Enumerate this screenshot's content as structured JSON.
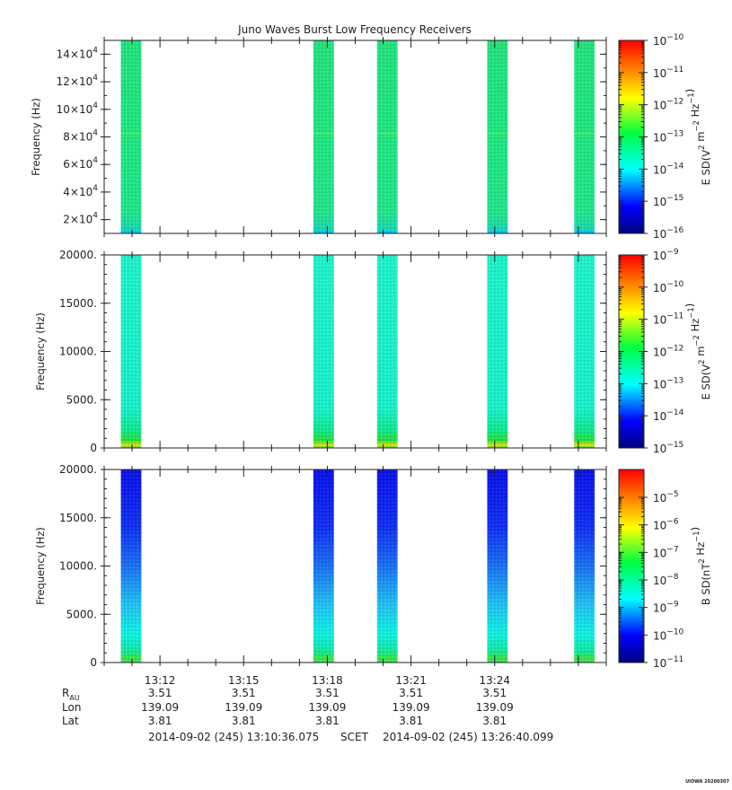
{
  "title": "Juno Waves Burst Low Frequency Receivers",
  "footer": {
    "start": "2014-09-02 (245) 13:10:36.075",
    "mid": "SCET",
    "end": "2014-09-02 (245) 13:26:40.099",
    "tag": "UIOWA 20200307"
  },
  "ephemeris": {
    "rows": [
      {
        "label": "R",
        "sub": "AU",
        "values": [
          "3.51",
          "3.51",
          "3.51",
          "3.51",
          "3.51"
        ]
      },
      {
        "label": "Lon",
        "sub": "",
        "values": [
          "139.09",
          "139.09",
          "139.09",
          "139.09",
          "139.09"
        ]
      },
      {
        "label": "Lat",
        "sub": "",
        "values": [
          "3.81",
          "3.81",
          "3.81",
          "3.81",
          "3.81"
        ]
      }
    ]
  },
  "chart_data": [
    {
      "type": "heatmap",
      "ylabel": "Frequency (Hz)",
      "colorbar_label": "E SD(V^2 m^-2 Hz^-1)",
      "colorbar_exponents": [
        -10,
        -11,
        -12,
        -13,
        -14,
        -15,
        -16
      ],
      "ylim": [
        10000,
        150000
      ],
      "yticks": [
        {
          "v": 20000,
          "m": "2",
          "e": "4"
        },
        {
          "v": 40000,
          "m": "4",
          "e": "4"
        },
        {
          "v": 60000,
          "m": "6",
          "e": "4"
        },
        {
          "v": 80000,
          "m": "8",
          "e": "4"
        },
        {
          "v": 100000,
          "m": "10",
          "e": "4"
        },
        {
          "v": 120000,
          "m": "12",
          "e": "4"
        },
        {
          "v": 140000,
          "m": "14",
          "e": "4"
        }
      ],
      "burst_intervals": [
        [
          "13:10:36",
          "13:11:20"
        ],
        [
          "13:17:30",
          "13:18:14"
        ],
        [
          "13:19:47",
          "13:20:31"
        ],
        [
          "13:23:44",
          "13:24:28"
        ],
        [
          "13:26:51",
          "13:27:35"
        ]
      ],
      "spectral_level": "1e-13 to 1e-14 (flat, green)"
    },
    {
      "type": "heatmap",
      "ylabel": "Frequency (Hz)",
      "colorbar_label": "E SD(V^2 m^-2 Hz^-1)",
      "colorbar_exponents": [
        -9,
        -10,
        -11,
        -12,
        -13,
        -14,
        -15
      ],
      "ylim": [
        0,
        20000
      ],
      "yticks": [
        {
          "v": 0,
          "t": "0"
        },
        {
          "v": 5000,
          "t": "5000."
        },
        {
          "v": 10000,
          "t": "10000."
        },
        {
          "v": 15000,
          "t": "15000."
        },
        {
          "v": 20000,
          "t": "20000."
        }
      ],
      "burst_intervals": [
        [
          "13:10:36",
          "13:11:20"
        ],
        [
          "13:17:30",
          "13:18:14"
        ],
        [
          "13:19:47",
          "13:20:31"
        ],
        [
          "13:23:44",
          "13:24:28"
        ],
        [
          "13:26:51",
          "13:27:35"
        ]
      ],
      "spectral_level": "~1e-13 (cyan), enhanced below 1 kHz"
    },
    {
      "type": "heatmap",
      "ylabel": "Frequency (Hz)",
      "colorbar_label": "B SD(nT^2 Hz^-1)",
      "colorbar_exponents": [
        -5,
        -6,
        -7,
        -8,
        -9,
        -10,
        -11
      ],
      "ylim": [
        0,
        20000
      ],
      "yticks": [
        {
          "v": 0,
          "t": "0"
        },
        {
          "v": 5000,
          "t": "5000."
        },
        {
          "v": 10000,
          "t": "10000."
        },
        {
          "v": 15000,
          "t": "15000."
        },
        {
          "v": 20000,
          "t": "20000."
        }
      ],
      "burst_intervals": [
        [
          "13:10:36",
          "13:11:20"
        ],
        [
          "13:17:30",
          "13:18:14"
        ],
        [
          "13:19:47",
          "13:20:31"
        ],
        [
          "13:23:44",
          "13:24:28"
        ],
        [
          "13:26:51",
          "13:27:35"
        ]
      ],
      "spectral_level": "1e-9 at low freq falling to 1e-10 at 20 kHz"
    }
  ],
  "x_axis": {
    "tick_labels": [
      "13:12",
      "13:15",
      "13:18",
      "13:21",
      "13:24"
    ],
    "xlim": [
      "13:10:00",
      "13:28:00"
    ]
  },
  "colors": {
    "scale": [
      "#00007f",
      "#0000ff",
      "#00ffff",
      "#00ff50",
      "#ffff00",
      "#ff8000",
      "#ff0000"
    ]
  }
}
